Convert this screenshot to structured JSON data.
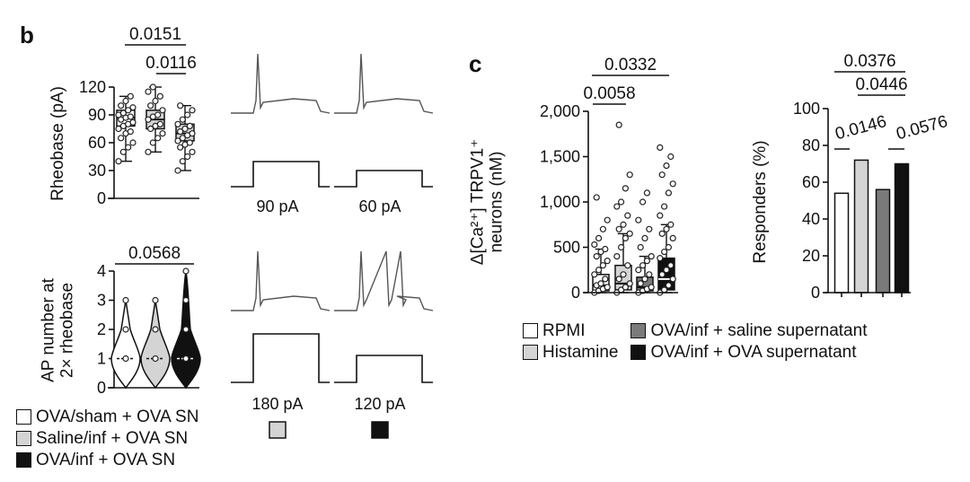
{
  "panel_labels": {
    "b": "b",
    "c": "c"
  },
  "colors": {
    "white": "#ffffff",
    "light_grey": "#d4d4d4",
    "dark_grey": "#7a7a7a",
    "black": "#111111",
    "trace": "#555555",
    "dot_light": "#c8c8c8"
  },
  "legend_b": {
    "items": [
      {
        "label": "OVA/sham + OVA SN",
        "color": "#ffffff"
      },
      {
        "label": "Saline/inf + OVA SN",
        "color": "#d4d4d4"
      },
      {
        "label": "OVA/inf + OVA SN",
        "color": "#111111"
      }
    ]
  },
  "legend_c": {
    "items": [
      {
        "label": "RPMI",
        "color": "#ffffff"
      },
      {
        "label": "Histamine",
        "color": "#d4d4d4"
      },
      {
        "label": "OVA/inf + saline supernatant",
        "color": "#7a7a7a"
      },
      {
        "label": "OVA/inf + OVA supernatant",
        "color": "#111111"
      }
    ]
  },
  "traces": {
    "rheobase_labels": [
      "90 pA",
      "60 pA"
    ],
    "twox_labels": [
      "180 pA",
      "120 pA"
    ],
    "twox_swatches": [
      "#d4d4d4",
      "#111111"
    ]
  },
  "chart_data": [
    {
      "id": "rheobase",
      "type": "box",
      "ylabel": "Rheobase (pA)",
      "ylim": [
        0,
        120
      ],
      "yticks": [
        0,
        30,
        60,
        90,
        120
      ],
      "groups": [
        {
          "fill": "#ffffff",
          "median": 87,
          "q1": 78,
          "q3": 95,
          "whisker": [
            40,
            110
          ],
          "points": [
            40,
            50,
            55,
            60,
            65,
            70,
            72,
            75,
            78,
            80,
            82,
            85,
            87,
            88,
            90,
            92,
            95,
            98,
            100,
            105,
            110
          ]
        },
        {
          "fill": "#d4d4d4",
          "median": 85,
          "q1": 75,
          "q3": 95,
          "whisker": [
            50,
            120
          ],
          "points": [
            50,
            60,
            65,
            70,
            75,
            78,
            80,
            85,
            88,
            90,
            95,
            100,
            105,
            110,
            115,
            120
          ]
        },
        {
          "fill": "#d4d4d4",
          "median": 70,
          "q1": 62,
          "q3": 80,
          "whisker": [
            30,
            100
          ],
          "points": [
            30,
            40,
            45,
            50,
            55,
            58,
            60,
            62,
            65,
            68,
            70,
            72,
            75,
            78,
            80,
            85,
            90,
            95,
            100
          ]
        }
      ],
      "annotations": [
        {
          "text": "0.0151",
          "from": 0,
          "to": 2
        },
        {
          "text": "0.0116",
          "from": 1,
          "to": 2
        }
      ]
    },
    {
      "id": "ap_number",
      "type": "violin",
      "ylabel": [
        "AP number at",
        "2× rheobase"
      ],
      "ylim": [
        0,
        4
      ],
      "yticks": [
        0,
        1,
        2,
        3,
        4
      ],
      "groups": [
        {
          "fill": "#ffffff",
          "median": 1,
          "points": [
            1,
            2,
            3
          ]
        },
        {
          "fill": "#d4d4d4",
          "median": 1,
          "points": [
            1,
            2,
            3
          ]
        },
        {
          "fill": "#111111",
          "median": 1,
          "points": [
            1,
            2,
            3,
            4
          ]
        }
      ],
      "annotations": [
        {
          "text": "0.0568",
          "from": 0,
          "to": 2
        }
      ]
    },
    {
      "id": "calcium",
      "type": "box",
      "ylabel": [
        "Δ[Ca²⁺] TRPV1⁺",
        "neurons (nM)"
      ],
      "ylim": [
        0,
        2000
      ],
      "yticks": [
        0,
        500,
        1000,
        1500,
        2000
      ],
      "ytick_labels": [
        "0",
        "500",
        "1,000",
        "1,500",
        "2,000"
      ],
      "groups": [
        {
          "fill": "#ffffff",
          "median": 80,
          "q1": 20,
          "q3": 200,
          "whisker": [
            0,
            480
          ],
          "points": [
            0,
            20,
            40,
            60,
            80,
            100,
            150,
            200,
            250,
            300,
            350,
            400,
            450,
            480,
            530,
            600,
            700,
            800,
            1050
          ]
        },
        {
          "fill": "#d4d4d4",
          "median": 100,
          "q1": 30,
          "q3": 300,
          "whisker": [
            0,
            650
          ],
          "points": [
            0,
            30,
            60,
            100,
            150,
            200,
            300,
            400,
            500,
            600,
            650,
            700,
            750,
            850,
            950,
            1000,
            1150,
            1300,
            1850
          ]
        },
        {
          "fill": "#7a7a7a",
          "median": 60,
          "q1": 20,
          "q3": 170,
          "whisker": [
            0,
            400
          ],
          "points": [
            0,
            20,
            40,
            60,
            100,
            150,
            200,
            250,
            300,
            350,
            400,
            500,
            600,
            700,
            800,
            1000,
            1100
          ]
        },
        {
          "fill": "#111111",
          "median": 150,
          "q1": 30,
          "q3": 380,
          "whisker": [
            0,
            750
          ],
          "points": [
            0,
            30,
            80,
            150,
            200,
            250,
            300,
            380,
            450,
            500,
            600,
            650,
            700,
            750,
            850,
            950,
            1100,
            1200,
            1300,
            1400,
            1500,
            1600
          ]
        }
      ],
      "annotations": [
        {
          "text": "0.0332",
          "from": 0,
          "to": 3
        },
        {
          "text": "0.0058",
          "from": 0,
          "to": 1
        }
      ]
    },
    {
      "id": "responders",
      "type": "bar",
      "ylabel": "Responders (%)",
      "ylim": [
        0,
        100
      ],
      "yticks": [
        0,
        20,
        40,
        60,
        80,
        100
      ],
      "series": [
        {
          "fill": "#ffffff",
          "value": 54
        },
        {
          "fill": "#d4d4d4",
          "value": 72
        },
        {
          "fill": "#7a7a7a",
          "value": 56
        },
        {
          "fill": "#111111",
          "value": 70
        }
      ],
      "annotations": [
        {
          "text": "0.0376",
          "from": 0,
          "to": 3
        },
        {
          "text": "0.0446",
          "from": 1,
          "to": 3
        },
        {
          "text": "0.0146",
          "from": 0,
          "to": 1,
          "rotated": true
        },
        {
          "text": "0.0576",
          "from": 2,
          "to": 3,
          "rotated": true
        }
      ]
    }
  ]
}
